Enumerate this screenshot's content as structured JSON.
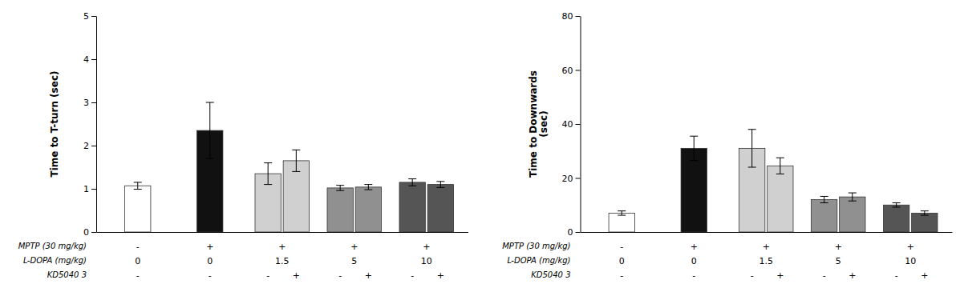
{
  "chart_data": [
    {
      "type": "bar",
      "ylabel": "Time to T-turn (sec)",
      "values": [
        1.07,
        2.35,
        1.35,
        1.65,
        1.02,
        1.04,
        1.15,
        1.1
      ],
      "errors": [
        0.08,
        0.65,
        0.25,
        0.25,
        0.06,
        0.06,
        0.08,
        0.07
      ],
      "colors": [
        "#ffffff",
        "#111111",
        "#d0d0d0",
        "#d0d0d0",
        "#909090",
        "#909090",
        "#555555",
        "#555555"
      ],
      "ylim": [
        0,
        5
      ],
      "yticks": [
        0,
        1,
        2,
        3,
        4,
        5
      ],
      "grid": false,
      "tick_labels": "y",
      "annotations": [
        {
          "text": "MPTP (30 mg/kg)",
          "labels": [
            "-",
            "+",
            "+",
            "+",
            "+",
            "+",
            "+",
            "+"
          ]
        },
        {
          "text": "L-DOPA (mg/kg)",
          "labels": [
            "0",
            "0",
            "1.5",
            "1.5",
            "5",
            "5",
            "10",
            "10"
          ]
        },
        {
          "text": "KD5040 3",
          "labels": [
            "-",
            "-",
            "-",
            "+",
            "-",
            "+",
            "-",
            "+"
          ]
        }
      ]
    },
    {
      "type": "bar",
      "ylabel": "Time to Downwards\n(sec)",
      "values": [
        7.0,
        31.0,
        31.0,
        24.5,
        12.0,
        13.0,
        10.0,
        7.0
      ],
      "errors": [
        0.8,
        4.5,
        7.0,
        3.0,
        1.2,
        1.5,
        0.8,
        0.8
      ],
      "colors": [
        "#ffffff",
        "#111111",
        "#d0d0d0",
        "#d0d0d0",
        "#909090",
        "#909090",
        "#555555",
        "#555555"
      ],
      "ylim": [
        0,
        80
      ],
      "yticks": [
        0,
        20,
        40,
        60,
        80
      ],
      "grid": false,
      "tick_labels": "y",
      "annotations": [
        {
          "text": "MPTP (30 mg/kg)",
          "labels": [
            "-",
            "+",
            "+",
            "+",
            "+",
            "+",
            "+",
            "+"
          ]
        },
        {
          "text": "L-DOPA (mg/kg)",
          "labels": [
            "0",
            "0",
            "1.5",
            "1.5",
            "5",
            "5",
            "10",
            "10"
          ]
        },
        {
          "text": "KD5040 3",
          "labels": [
            "-",
            "-",
            "-",
            "+",
            "-",
            "+",
            "-",
            "+"
          ]
        }
      ]
    }
  ]
}
